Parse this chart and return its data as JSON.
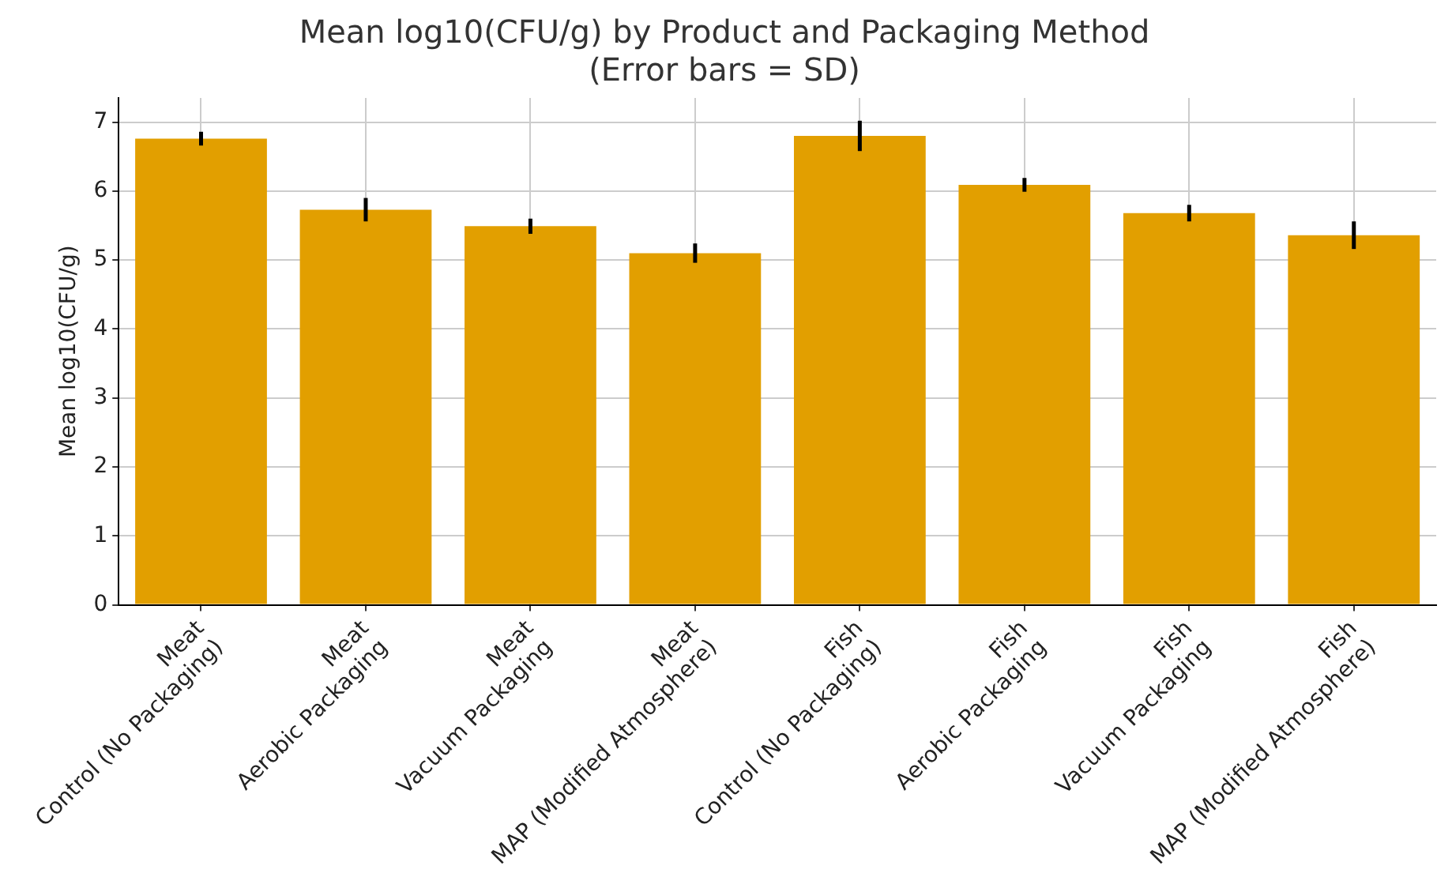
{
  "chart_data": {
    "type": "bar",
    "title": "Mean log10(CFU/g) by Product and Packaging Method\n(Error bars = SD)",
    "ylabel": "Mean log10(CFU/g)",
    "categories": [
      "Meat\nControl (No Packaging)",
      "Meat\nAerobic Packaging",
      "Meat\nVacuum Packaging",
      "Meat\nMAP (Modified Atmosphere)",
      "Fish\nControl (No Packaging)",
      "Fish\nAerobic Packaging",
      "Fish\nVacuum Packaging",
      "Fish\nMAP (Modified Atmosphere)"
    ],
    "values": [
      6.76,
      5.73,
      5.49,
      5.1,
      6.8,
      6.09,
      5.68,
      5.36
    ],
    "errors": [
      0.1,
      0.17,
      0.11,
      0.14,
      0.22,
      0.1,
      0.12,
      0.2
    ],
    "color": "#e29f00",
    "ylim": [
      0,
      7.35
    ],
    "yticks": [
      0,
      1,
      2,
      3,
      4,
      5,
      6,
      7
    ],
    "grid": true
  }
}
